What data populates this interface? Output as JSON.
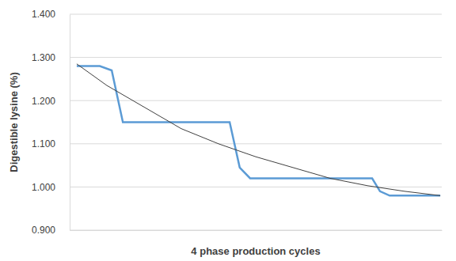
{
  "chart_data": {
    "type": "line",
    "x_label": "4 phase production cycles",
    "y_label": "Digestible lysine (%)",
    "xlim": [
      0,
      100
    ],
    "ylim": [
      0.9,
      1.4
    ],
    "yticks": [
      {
        "value": 0.9,
        "label": "0.900"
      },
      {
        "value": 1.0,
        "label": "1.000"
      },
      {
        "value": 1.1,
        "label": "1.100"
      },
      {
        "value": 1.2,
        "label": "1.200"
      },
      {
        "value": 1.3,
        "label": "1.300"
      },
      {
        "value": 1.4,
        "label": "1.400"
      }
    ],
    "grid": true,
    "tick_labels": "y",
    "series": [
      {
        "color": "#5b9bd5",
        "x": [
          1.9,
          8.1,
          11.3,
          14.3,
          43.0,
          45.7,
          48.5,
          81.3,
          83.4,
          86.0,
          99.6
        ],
        "values": [
          1.28,
          1.28,
          1.27,
          1.15,
          1.15,
          1.045,
          1.02,
          1.02,
          0.99,
          0.98,
          0.98
        ]
      },
      {
        "color": "#404040",
        "x": [
          1.9,
          10,
          20,
          30,
          40,
          50,
          60,
          70,
          80,
          90,
          99.6
        ],
        "values": [
          1.285,
          1.235,
          1.185,
          1.135,
          1.1,
          1.07,
          1.045,
          1.02,
          1.003,
          0.99,
          0.98
        ]
      }
    ]
  }
}
